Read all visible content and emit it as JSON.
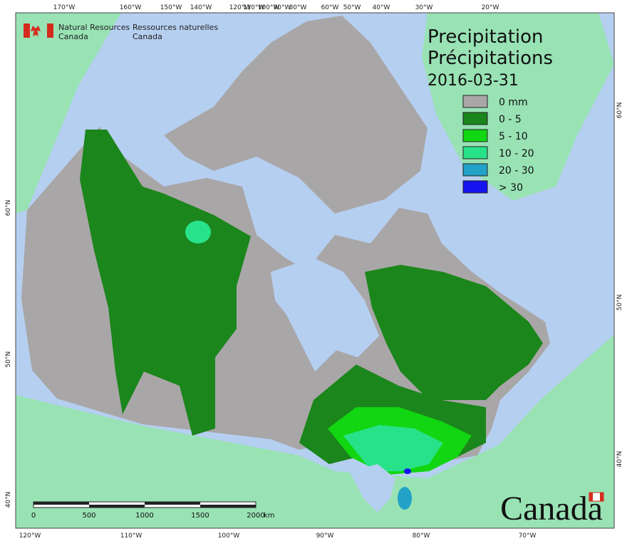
{
  "header": {
    "agency_en_1": "Natural Resources",
    "agency_en_2": "Canada",
    "agency_fr_1": "Ressources naturelles",
    "agency_fr_2": "Canada"
  },
  "title": {
    "en": "Precipitation",
    "fr": "Précipitations",
    "date": "2016-03-31"
  },
  "legend": [
    {
      "label": "0 mm",
      "color": "#a9a6a8"
    },
    {
      "label": "0 - 5",
      "color": "#1b861b"
    },
    {
      "label": "5 - 10",
      "color": "#11d611"
    },
    {
      "label": "10 - 20",
      "color": "#28e28a"
    },
    {
      "label": "20 - 30",
      "color": "#21a2c6"
    },
    {
      "label": "> 30",
      "color": "#1414ee"
    }
  ],
  "graticule": {
    "top": [
      "170°W",
      "160°W",
      "150°W",
      "140°W",
      "120°W",
      "110°W",
      "100°W",
      "90°W",
      "80°W",
      "60°W",
      "50°W",
      "40°W",
      "30°W",
      "20°W"
    ],
    "bottom": [
      "120°W",
      "110°W",
      "100°W",
      "90°W",
      "80°W",
      "70°W"
    ],
    "left": [
      "60°N",
      "50°N",
      "40°N"
    ],
    "right": [
      "60°N",
      "50°N",
      "40°N"
    ]
  },
  "scale_bar": {
    "labels": [
      "0",
      "500",
      "1000",
      "1500",
      "2000"
    ],
    "unit": "km"
  },
  "wordmark": "Canada"
}
